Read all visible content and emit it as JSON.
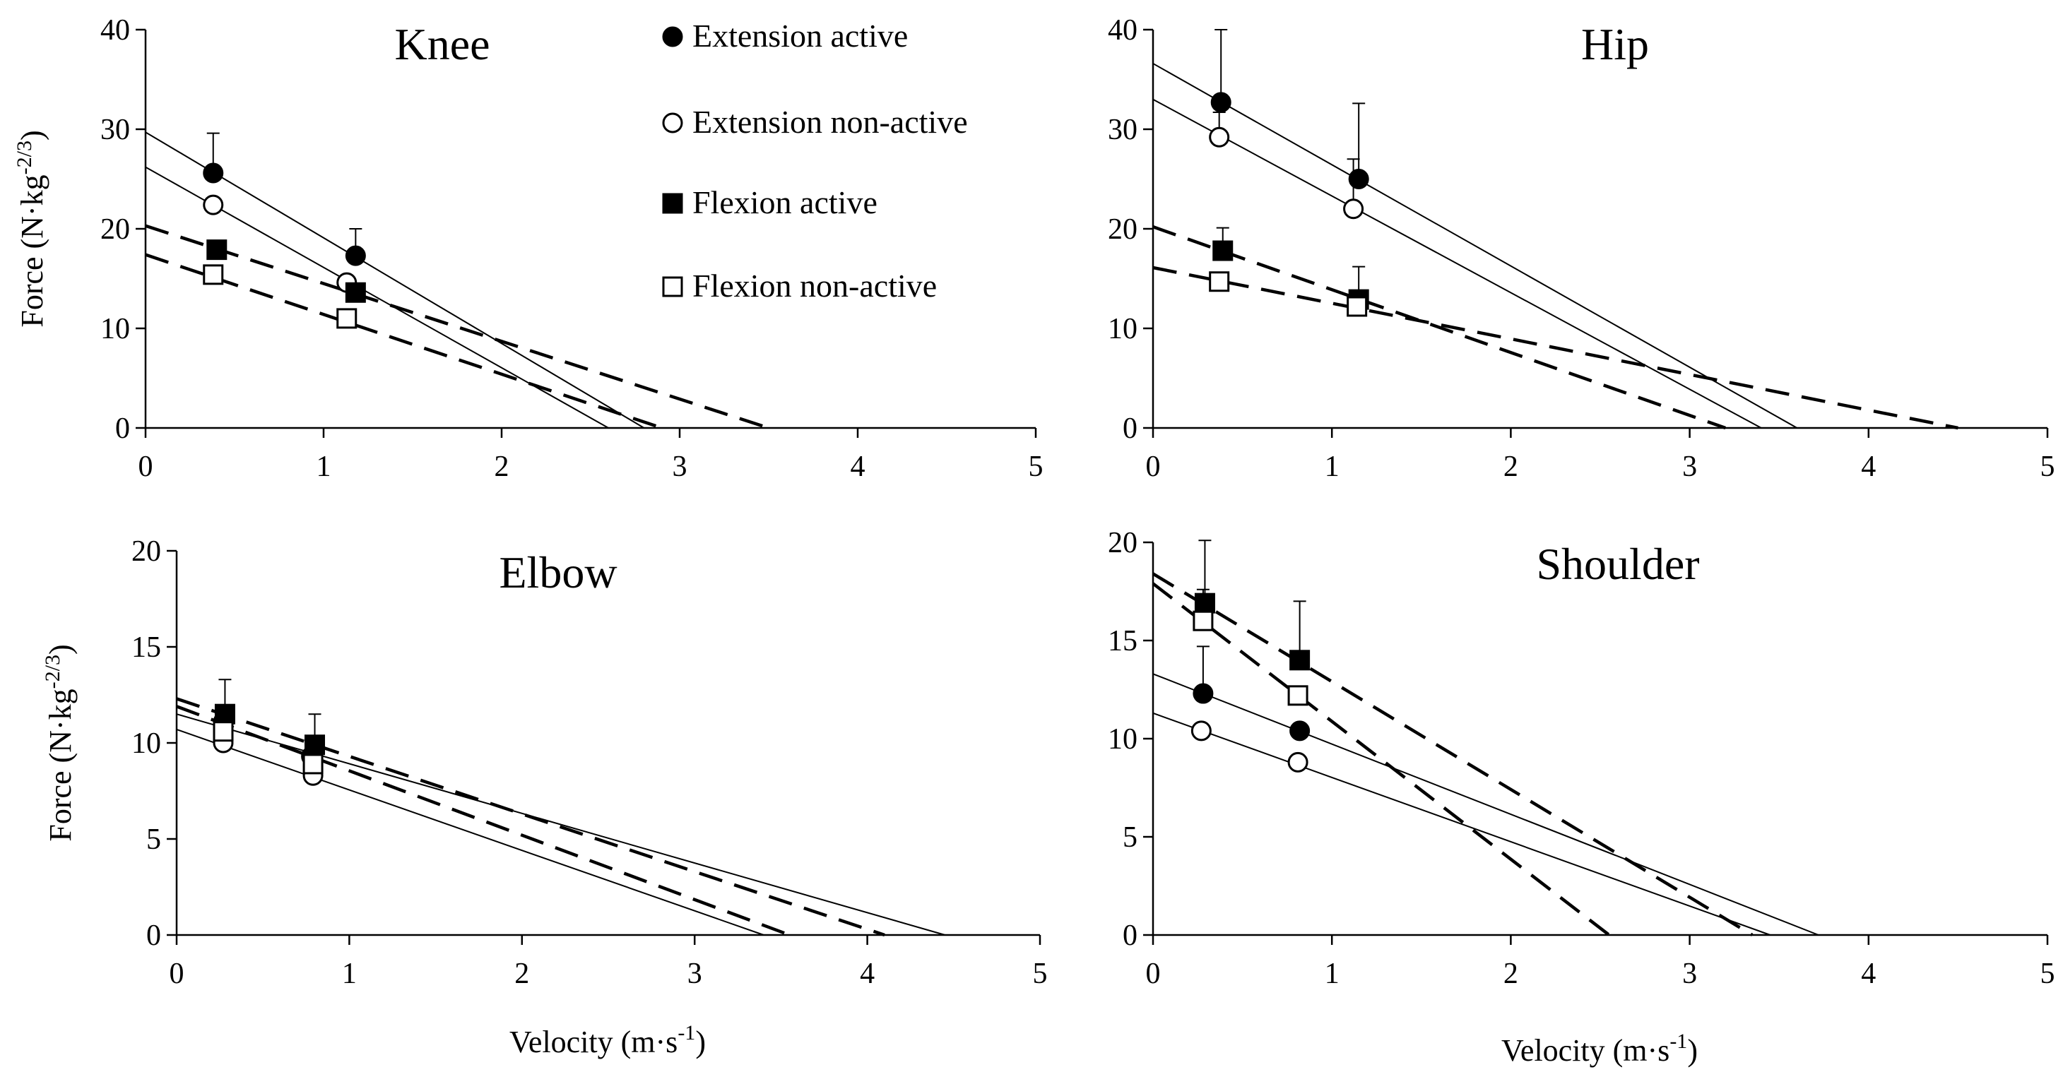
{
  "chart_data": [
    {
      "type": "scatter",
      "title": "Knee",
      "xlabel": "",
      "ylabel": "Force (N·kg",
      "ylabel_sup": "-2/3",
      "ylabel_end": ")",
      "xlim": [
        0,
        5
      ],
      "ylim": [
        0,
        40
      ],
      "xticks": [
        "0",
        "1",
        "2",
        "3",
        "4",
        "5"
      ],
      "yticks": [
        "0",
        "10",
        "20",
        "30",
        "40"
      ],
      "series": [
        {
          "name": "Extension active",
          "marker": "filled-circle",
          "line": "solid",
          "x": [
            0.38,
            1.18
          ],
          "y": [
            25.6,
            17.3
          ],
          "err": [
            4.0,
            2.7
          ],
          "fit": [
            [
              0,
              29.7
            ],
            [
              2.8,
              0
            ]
          ]
        },
        {
          "name": "Extension non-active",
          "marker": "open-circle",
          "line": "solid",
          "x": [
            0.38,
            1.13
          ],
          "y": [
            22.4,
            14.6
          ],
          "err": [
            0,
            0
          ],
          "fit": [
            [
              0,
              26.2
            ],
            [
              2.6,
              0
            ]
          ]
        },
        {
          "name": "Flexion active",
          "marker": "filled-square",
          "line": "dashed",
          "x": [
            0.4,
            1.18
          ],
          "y": [
            17.9,
            13.6
          ],
          "err": [
            0,
            0
          ],
          "fit": [
            [
              0,
              20.3
            ],
            [
              3.5,
              0
            ]
          ]
        },
        {
          "name": "Flexion non-active",
          "marker": "open-square",
          "line": "dashed",
          "x": [
            0.38,
            1.13
          ],
          "y": [
            15.4,
            11.0
          ],
          "err": [
            0,
            0
          ],
          "fit": [
            [
              0,
              17.4
            ],
            [
              2.9,
              0
            ]
          ]
        }
      ]
    },
    {
      "type": "scatter",
      "title": "Hip",
      "xlabel": "",
      "ylabel": "",
      "ylabel_sup": "",
      "ylabel_end": "",
      "xlim": [
        0,
        5
      ],
      "ylim": [
        0,
        40
      ],
      "xticks": [
        "0",
        "1",
        "2",
        "3",
        "4",
        "5"
      ],
      "yticks": [
        "0",
        "10",
        "20",
        "30",
        "40"
      ],
      "series": [
        {
          "name": "Extension active",
          "marker": "filled-circle",
          "line": "solid",
          "x": [
            0.38,
            1.15
          ],
          "y": [
            32.7,
            25.0
          ],
          "err": [
            7.3,
            7.6
          ],
          "fit": [
            [
              0,
              36.6
            ],
            [
              3.6,
              0
            ]
          ]
        },
        {
          "name": "Extension non-active",
          "marker": "open-circle",
          "line": "solid",
          "x": [
            0.37,
            1.12
          ],
          "y": [
            29.2,
            22.0
          ],
          "err": [
            2.5,
            5.0
          ],
          "fit": [
            [
              0,
              33.0
            ],
            [
              3.4,
              0
            ]
          ]
        },
        {
          "name": "Flexion active",
          "marker": "filled-square",
          "line": "dashed",
          "x": [
            0.39,
            1.15
          ],
          "y": [
            17.8,
            12.9
          ],
          "err": [
            2.3,
            3.3
          ],
          "fit": [
            [
              0,
              20.2
            ],
            [
              3.2,
              0
            ]
          ]
        },
        {
          "name": "Flexion non-active",
          "marker": "open-square",
          "line": "dashed",
          "x": [
            0.37,
            1.14
          ],
          "y": [
            14.7,
            12.2
          ],
          "err": [
            0,
            0
          ],
          "fit": [
            [
              0,
              16.1
            ],
            [
              4.5,
              0
            ]
          ]
        }
      ]
    },
    {
      "type": "scatter",
      "title": "Elbow",
      "xlabel": "Velocity (m·s",
      "xlabel_sup": "-1",
      "xlabel_end": ")",
      "ylabel": "Force (N·kg",
      "ylabel_sup": "-2/3",
      "ylabel_end": ")",
      "xlim": [
        0,
        5
      ],
      "ylim": [
        0,
        20
      ],
      "xticks": [
        "0",
        "1",
        "2",
        "3",
        "4",
        "5"
      ],
      "yticks": [
        "0",
        "5",
        "10",
        "15",
        "20"
      ],
      "series": [
        {
          "name": "Extension active",
          "marker": "filled-circle",
          "line": "solid",
          "x": [
            0.27,
            0.78
          ],
          "y": [
            11.1,
            9.3
          ],
          "err": [
            0,
            0
          ],
          "fit": [
            [
              0,
              11.5
            ],
            [
              4.45,
              0
            ]
          ]
        },
        {
          "name": "Extension non-active",
          "marker": "open-circle",
          "line": "solid",
          "x": [
            0.27,
            0.79
          ],
          "y": [
            10.0,
            8.3
          ],
          "err": [
            0,
            0
          ],
          "fit": [
            [
              0,
              10.7
            ],
            [
              3.4,
              0
            ]
          ]
        },
        {
          "name": "Flexion active",
          "marker": "filled-square",
          "line": "dashed",
          "x": [
            0.28,
            0.8
          ],
          "y": [
            11.5,
            9.9
          ],
          "err": [
            1.8,
            1.6
          ],
          "fit": [
            [
              0,
              12.3
            ],
            [
              4.1,
              0
            ]
          ]
        },
        {
          "name": "Flexion non-active",
          "marker": "open-square",
          "line": "dashed",
          "x": [
            0.27,
            0.79
          ],
          "y": [
            10.6,
            8.9
          ],
          "err": [
            0,
            0
          ],
          "fit": [
            [
              0,
              11.9
            ],
            [
              3.55,
              0
            ]
          ]
        }
      ]
    },
    {
      "type": "scatter",
      "title": "Shoulder",
      "xlabel": "Velocity (m·s",
      "xlabel_sup": "-1",
      "xlabel_end": ")",
      "ylabel": "",
      "ylabel_sup": "",
      "ylabel_end": "",
      "xlim": [
        0,
        5
      ],
      "ylim": [
        0,
        20
      ],
      "xticks": [
        "0",
        "1",
        "2",
        "3",
        "4",
        "5"
      ],
      "yticks": [
        "0",
        "5",
        "10",
        "15",
        "20"
      ],
      "series": [
        {
          "name": "Extension active",
          "marker": "filled-circle",
          "line": "solid",
          "x": [
            0.28,
            0.82
          ],
          "y": [
            12.3,
            10.4
          ],
          "err": [
            2.4,
            0
          ],
          "fit": [
            [
              0,
              13.3
            ],
            [
              3.72,
              0
            ]
          ]
        },
        {
          "name": "Extension non-active",
          "marker": "open-circle",
          "line": "solid",
          "x": [
            0.27,
            0.81
          ],
          "y": [
            10.4,
            8.8
          ],
          "err": [
            0,
            0
          ],
          "fit": [
            [
              0,
              11.3
            ],
            [
              3.45,
              0
            ]
          ]
        },
        {
          "name": "Flexion active",
          "marker": "filled-square",
          "line": "dashed",
          "x": [
            0.29,
            0.82
          ],
          "y": [
            16.9,
            14.0
          ],
          "err": [
            3.2,
            3.0
          ],
          "fit": [
            [
              0,
              18.4
            ],
            [
              3.35,
              0
            ]
          ]
        },
        {
          "name": "Flexion non-active",
          "marker": "open-square",
          "line": "dashed",
          "x": [
            0.28,
            0.81
          ],
          "y": [
            16.0,
            12.2
          ],
          "err": [
            1.6,
            0
          ],
          "fit": [
            [
              0,
              17.9
            ],
            [
              2.55,
              0
            ]
          ]
        }
      ]
    }
  ],
  "legend": {
    "placement": "top-center",
    "items": [
      {
        "label": "Extension active",
        "marker": "filled-circle"
      },
      {
        "label": "Extension non-active",
        "marker": "open-circle"
      },
      {
        "label": "Flexion active",
        "marker": "filled-square"
      },
      {
        "label": "Flexion non-active",
        "marker": "open-square"
      }
    ]
  }
}
